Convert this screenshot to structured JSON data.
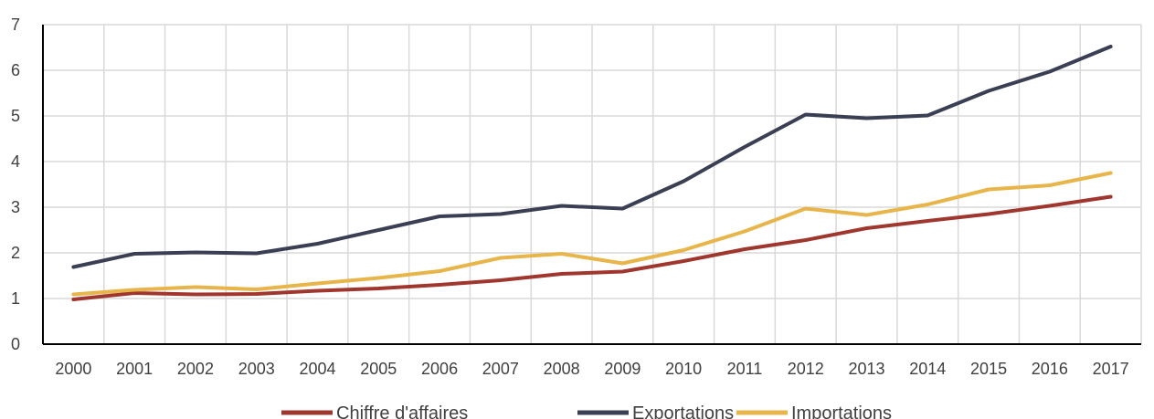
{
  "chart_data": {
    "type": "line",
    "categories": [
      "2000",
      "2001",
      "2002",
      "2003",
      "2004",
      "2005",
      "2006",
      "2007",
      "2008",
      "2009",
      "2010",
      "2011",
      "2012",
      "2013",
      "2014",
      "2015",
      "2016",
      "2017"
    ],
    "series": [
      {
        "name": "Chiffre d'affaires",
        "color": "#a0372f",
        "values": [
          0.98,
          1.12,
          1.09,
          1.1,
          1.17,
          1.22,
          1.3,
          1.4,
          1.54,
          1.59,
          1.82,
          2.08,
          2.28,
          2.54,
          2.7,
          2.85,
          3.03,
          3.23
        ]
      },
      {
        "name": "Exportations",
        "color": "#3b3f54",
        "values": [
          1.69,
          1.98,
          2.01,
          1.99,
          2.2,
          2.5,
          2.8,
          2.85,
          3.03,
          2.97,
          3.57,
          4.32,
          5.03,
          4.95,
          5.01,
          5.55,
          5.97,
          6.52
        ]
      },
      {
        "name": "Importations",
        "color": "#e8b54b",
        "values": [
          1.09,
          1.19,
          1.25,
          1.2,
          1.33,
          1.45,
          1.6,
          1.89,
          1.98,
          1.77,
          2.06,
          2.47,
          2.97,
          2.83,
          3.06,
          3.39,
          3.48,
          3.75
        ]
      }
    ],
    "yticks": [
      "0",
      "1",
      "2",
      "3",
      "4",
      "5",
      "6",
      "7"
    ],
    "ylim": [
      0,
      7
    ],
    "grid": true,
    "legend": "bottom",
    "title": "",
    "xlabel": "",
    "ylabel": ""
  }
}
